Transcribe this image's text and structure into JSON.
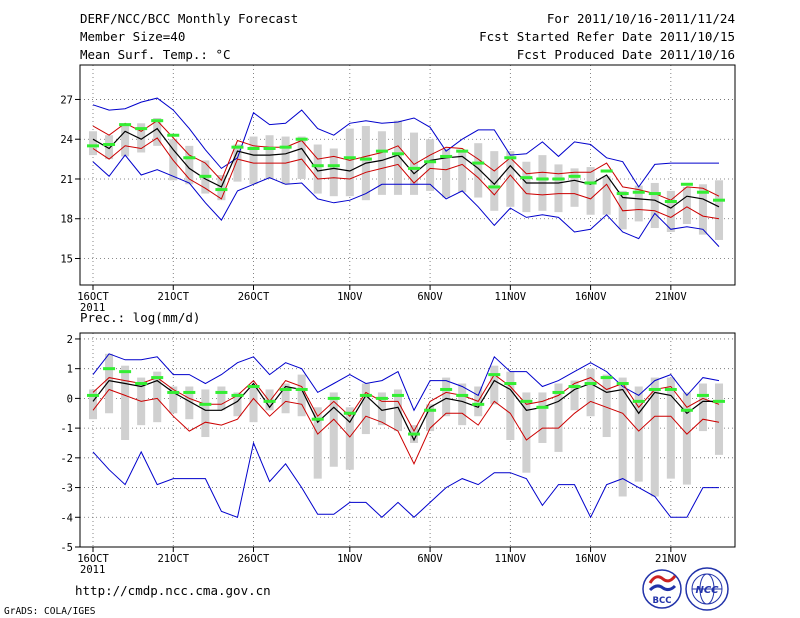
{
  "header": {
    "title": "DERF/NCC/BCC Monthly Forecast",
    "member_size": "Member Size=40",
    "variable_label": "Mean Surf. Temp.: °C",
    "period": "For 2011/10/16-2011/11/24",
    "started": "Fcst Started Refer Date 2011/10/15",
    "produced": "Fcst Produced Date 2011/10/16"
  },
  "footer": {
    "url": "http://cmdp.ncc.cma.gov.cn",
    "credit": "GrADS: COLA/IGES",
    "logo_bcc": "BCC",
    "logo_ncc": "NCC"
  },
  "colors": {
    "frame": "#000000",
    "ensemble_range": "#0000cc",
    "std_dev": "#cc0000",
    "ensemble_mean": "#000000",
    "spread_bar": "#d0d0d0",
    "member_marker": "#33ee33",
    "grid": "#666666"
  },
  "chart_data": [
    {
      "type": "line",
      "title": "Mean Surf. Temp.: °C",
      "x_tick_labels": [
        "16OCT",
        "21OCT",
        "26OCT",
        "1NOV",
        "6NOV",
        "11NOV",
        "16NOV",
        "21NOV"
      ],
      "x_tick_days": [
        0,
        5,
        10,
        16,
        21,
        26,
        31,
        36
      ],
      "year_label": "2011",
      "days": 40,
      "ylim": [
        13,
        29.6
      ],
      "yticks": [
        15,
        18,
        21,
        24,
        27
      ],
      "series": [
        {
          "name": "max",
          "values": [
            26.6,
            26.2,
            26.3,
            26.8,
            27.1,
            26.2,
            24.8,
            23.2,
            21.8,
            22.6,
            26,
            25.1,
            25.2,
            26.2,
            24.8,
            24.3,
            25.2,
            25.4,
            25.2,
            25.3,
            25.6,
            24.9,
            23.1,
            24,
            24.7,
            24.7,
            22.8,
            22.9,
            23.8,
            22.7,
            23.8,
            23.6,
            22.6,
            22.3,
            20.4,
            22.1,
            22.2,
            22.2,
            22.2,
            22.2
          ]
        },
        {
          "name": "plus_sd",
          "values": [
            25,
            24.3,
            25.2,
            24.6,
            25.4,
            24.1,
            22.8,
            22.2,
            20.9,
            23.9,
            23.5,
            23.4,
            23.4,
            23.9,
            22.5,
            22.7,
            22.4,
            22.7,
            23,
            23.5,
            22.1,
            22.8,
            23.4,
            23.3,
            22.5,
            21.6,
            22.6,
            21.4,
            21.5,
            21.4,
            21.5,
            21.5,
            22.2,
            20.4,
            20.2,
            19.9,
            19.4,
            20.4,
            20.3,
            19.7
          ]
        },
        {
          "name": "mean",
          "values": [
            24,
            23.3,
            24.6,
            24,
            24.8,
            23.2,
            21.8,
            21,
            20.4,
            23.1,
            22.8,
            22.8,
            22.9,
            23.3,
            21.6,
            21.8,
            21.6,
            22.2,
            22.4,
            22.8,
            21.4,
            22.4,
            22.6,
            22.7,
            21.8,
            20.6,
            22,
            20.7,
            20.7,
            20.7,
            20.9,
            20.6,
            21.3,
            19.6,
            19.5,
            19.4,
            18.8,
            19.7,
            19.5,
            18.9
          ]
        },
        {
          "name": "minus_sd",
          "values": [
            23.3,
            22.5,
            23.5,
            23.3,
            24.1,
            22.4,
            21,
            20.3,
            19.5,
            22.5,
            22.2,
            22.2,
            22.2,
            22.5,
            21,
            21.1,
            21,
            21.5,
            21.8,
            22.1,
            20.7,
            21.8,
            21.7,
            22.1,
            21.1,
            19.8,
            21.3,
            19.9,
            19.8,
            19.9,
            19.9,
            19.5,
            20.6,
            18.6,
            18.7,
            18.6,
            18.1,
            18.9,
            18.2,
            18
          ]
        },
        {
          "name": "min",
          "values": [
            22.3,
            21.2,
            22.8,
            21.3,
            21.7,
            21.2,
            20.7,
            19.2,
            17.9,
            20.1,
            20.6,
            21.1,
            20.6,
            20.7,
            19.5,
            19.2,
            19.4,
            19.9,
            20.6,
            20.6,
            20.6,
            20.6,
            19.5,
            20.1,
            18.9,
            17.5,
            18.8,
            18.1,
            18.3,
            18.1,
            17,
            17.2,
            18.3,
            17,
            16.5,
            18.4,
            17.2,
            17.4,
            17.2,
            15.9
          ]
        },
        {
          "name": "member_marker",
          "values": [
            23.5,
            23.6,
            25.1,
            24.8,
            25.4,
            24.3,
            22.6,
            21.2,
            20.2,
            23.4,
            23.3,
            23.3,
            23.4,
            24,
            22,
            22,
            22.6,
            22.5,
            23.1,
            22.9,
            21.8,
            22.3,
            22.7,
            23.1,
            22.2,
            20.4,
            22.6,
            21.1,
            21,
            21,
            21.2,
            20.7,
            21.6,
            19.9,
            20,
            19.9,
            19.3,
            20.6,
            20,
            19.4
          ]
        }
      ],
      "spread": {
        "low": [
          22.8,
          22.5,
          22.7,
          23,
          23.5,
          20.9,
          20.6,
          19.9,
          19.4,
          20.8,
          20.6,
          21,
          20.6,
          21,
          19.9,
          19.7,
          19.7,
          19.4,
          19.8,
          19.8,
          19.8,
          20.1,
          19.6,
          20,
          19.6,
          18.6,
          18.9,
          18.5,
          18.6,
          18.5,
          18.9,
          18.3,
          18.3,
          17.2,
          17.8,
          17.3,
          17,
          17.6,
          16.8,
          16.4
        ],
        "high": [
          24.6,
          24.3,
          25.1,
          25.2,
          25.6,
          24,
          23.5,
          22.4,
          21.3,
          23.6,
          24.2,
          24.3,
          24.2,
          24.2,
          23.6,
          23.3,
          24.8,
          25,
          24.6,
          25.4,
          24.5,
          24,
          23.3,
          23.1,
          23.7,
          23.1,
          23.1,
          22.3,
          22.8,
          22.1,
          21.8,
          21.9,
          21.2,
          20.1,
          20.5,
          20.7,
          20.1,
          20.4,
          20.6,
          20.9
        ]
      }
    },
    {
      "type": "line",
      "title": "Prec.: log(mm/d)",
      "x_tick_labels": [
        "16OCT",
        "21OCT",
        "26OCT",
        "1NOV",
        "6NOV",
        "11NOV",
        "16NOV",
        "21NOV"
      ],
      "x_tick_days": [
        0,
        5,
        10,
        16,
        21,
        26,
        31,
        36
      ],
      "year_label": "2011",
      "days": 40,
      "ylim": [
        -5,
        2.2
      ],
      "yticks": [
        -5,
        -4,
        -3,
        -2,
        -1,
        0,
        1,
        2
      ],
      "series": [
        {
          "name": "max",
          "values": [
            0.8,
            1.5,
            1.3,
            1.3,
            1.4,
            0.8,
            0.8,
            0.5,
            0.8,
            1.2,
            1.4,
            0.8,
            1.2,
            1,
            0.2,
            0.5,
            0.8,
            0.5,
            0.6,
            0.9,
            -0.4,
            0.6,
            0.6,
            0.4,
            0.1,
            1.4,
            0.9,
            0.9,
            0.4,
            0.6,
            0.9,
            1.2,
            0.9,
            0.4,
            0.1,
            0.6,
            0.8,
            0.1,
            0.7,
            0.6
          ]
        },
        {
          "name": "plus_sd",
          "values": [
            0.2,
            0.7,
            0.6,
            0.5,
            0.7,
            0.3,
            0,
            -0.2,
            -0.2,
            0.1,
            0.6,
            -0.1,
            0.6,
            0.4,
            -0.6,
            -0.1,
            -0.6,
            0.2,
            -0.1,
            -0.1,
            -1.1,
            -0.1,
            0.2,
            0.1,
            -0.1,
            0.8,
            0.4,
            -0.2,
            -0.1,
            0.1,
            0.5,
            0.7,
            0.3,
            0.5,
            -0.3,
            0.3,
            0.4,
            -0.3,
            0,
            -0.2
          ]
        },
        {
          "name": "mean",
          "values": [
            -0.1,
            0.6,
            0.5,
            0.4,
            0.6,
            0.2,
            -0.1,
            -0.4,
            -0.4,
            -0.1,
            0.5,
            -0.3,
            0.4,
            0.3,
            -0.8,
            -0.3,
            -0.8,
            0.1,
            -0.4,
            -0.3,
            -1.4,
            -0.3,
            0,
            -0.1,
            -0.3,
            0.6,
            0.3,
            -0.4,
            -0.3,
            -0.1,
            0.3,
            0.5,
            0.2,
            0.3,
            -0.5,
            0.2,
            0.1,
            -0.5,
            -0.1,
            -0.1
          ]
        },
        {
          "name": "minus_sd",
          "values": [
            -0.4,
            0.3,
            0.1,
            -0.1,
            0,
            -0.6,
            -1.1,
            -0.8,
            -0.9,
            -0.7,
            0,
            -0.6,
            -0.1,
            -0.2,
            -1.2,
            -0.7,
            -1.3,
            -0.6,
            -0.8,
            -1.1,
            -2.2,
            -1,
            -0.5,
            -0.5,
            -0.9,
            -0.1,
            -0.5,
            -1.4,
            -1,
            -1,
            -0.5,
            -0.1,
            -0.3,
            -0.5,
            -1.1,
            -0.6,
            -0.6,
            -1.2,
            -0.7,
            -0.8
          ]
        },
        {
          "name": "min",
          "values": [
            -1.8,
            -2.4,
            -2.9,
            -1.8,
            -2.9,
            -2.7,
            -2.7,
            -2.7,
            -3.8,
            -4,
            -1.5,
            -2.8,
            -2.2,
            -3,
            -3.9,
            -3.9,
            -3.5,
            -3.5,
            -4,
            -3.5,
            -4,
            -3.5,
            -3,
            -2.7,
            -2.9,
            -2.5,
            -2.5,
            -2.7,
            -3.6,
            -2.9,
            -2.9,
            -4,
            -2.9,
            -2.7,
            -3,
            -3.3,
            -4,
            -4,
            -3,
            -3
          ]
        },
        {
          "name": "member_marker",
          "values": [
            0.1,
            1,
            0.9,
            0.5,
            0.7,
            0.2,
            0.2,
            -0.2,
            0.2,
            0.1,
            0.4,
            -0.1,
            0.3,
            0.3,
            -0.7,
            0,
            -0.5,
            0.1,
            0,
            0.1,
            -1.2,
            -0.4,
            0.3,
            0.1,
            -0.2,
            0.8,
            0.5,
            -0.1,
            -0.3,
            0.2,
            0.4,
            0.5,
            0.7,
            0.5,
            -0.1,
            0.3,
            0.3,
            -0.4,
            0.1,
            -0.1
          ]
        }
      ],
      "spread": {
        "low": [
          -0.7,
          -0.5,
          -1.4,
          -0.9,
          -0.8,
          -0.5,
          -0.7,
          -1.3,
          -0.4,
          -0.6,
          -0.8,
          -0.4,
          -0.5,
          -0.6,
          -2.7,
          -2.3,
          -2.4,
          -1.2,
          -0.9,
          -1.1,
          -1.5,
          -1.1,
          -0.6,
          -0.9,
          -0.6,
          -0.2,
          -1.4,
          -2.5,
          -1.5,
          -1.8,
          -0.4,
          -0.6,
          -1.3,
          -3.3,
          -2.8,
          -3.3,
          -2.7,
          -2.9,
          -1.1,
          -1.9
        ],
        "high": [
          0.3,
          1.5,
          1.1,
          0.7,
          0.9,
          0.4,
          0.4,
          0.3,
          0.4,
          0.2,
          0.4,
          0.3,
          0.5,
          0.8,
          -0.3,
          0.2,
          -0.3,
          0.5,
          0.2,
          0.3,
          -0.9,
          -0.2,
          0.7,
          0.5,
          0.4,
          1.1,
          0.9,
          0.2,
          0.2,
          0.5,
          0.6,
          1,
          0.8,
          0.7,
          0.4,
          0.7,
          0.7,
          0.2,
          0.5,
          0.5
        ]
      }
    }
  ]
}
